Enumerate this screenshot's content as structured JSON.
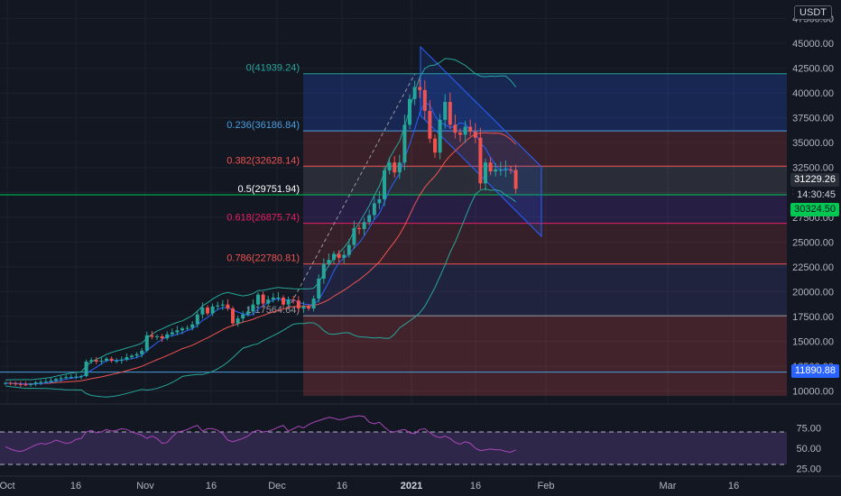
{
  "currency": "USDT",
  "price_tags": {
    "upper": "31229.26",
    "countdown": "14:30:45",
    "current": "30324.50",
    "lower": "11890.88"
  },
  "colors": {
    "background": "#131722",
    "bullish": "#26a69a",
    "bearish": "#ef5350",
    "fib_top": "#4a7fc1",
    "rsi_line": "#ab47bc",
    "bb_line": "#26a69a",
    "ma_line": "#ef5350",
    "current_price": "#00c853"
  },
  "chart_data": [
    {
      "type": "candlestick",
      "x_ticks": [
        "Oct",
        "16",
        "Nov",
        "16",
        "Dec",
        "16",
        "2021",
        "16",
        "Feb",
        "Mar",
        "16"
      ],
      "y_ticks": [
        10000,
        12500,
        15000,
        17500,
        20000,
        22500,
        25000,
        27500,
        30000,
        32500,
        35000,
        37500,
        40000,
        42500,
        45000,
        47500
      ],
      "y_tick_labels": [
        "10000.00",
        "12500.00",
        "15000.00",
        "17500.00",
        "20000.00",
        "22500.00",
        "25000.00",
        "27500.00",
        "30000.00",
        "32500.00",
        "35000.00",
        "37500.00",
        "40000.00",
        "42500.00",
        "45000.00",
        "47500.00"
      ],
      "ylim": [
        9500,
        48000
      ],
      "fibonacci": [
        {
          "label": "0(41939.24)",
          "value": 41939.24,
          "color": "#26a69a"
        },
        {
          "label": "0.236(36186.84)",
          "value": 36186.84,
          "color": "#4a9fe0"
        },
        {
          "label": "0.382(32628.14)",
          "value": 32628.14,
          "color": "#ef5350"
        },
        {
          "label": "0.5(29751.94)",
          "value": 29751.94,
          "color": "#ffffff"
        },
        {
          "label": "0.618(26875.74)",
          "value": 26875.74,
          "color": "#e91e63"
        },
        {
          "label": "0.786(22780.81)",
          "value": 22780.81,
          "color": "#ef5350"
        },
        {
          "label": "1(17564.64)",
          "value": 17564.64,
          "color": "#9598a1"
        }
      ],
      "horizontal_lines": [
        {
          "value": 29751.94,
          "color": "#00c853"
        },
        {
          "value": 11890.88,
          "color": "#4a9fe0"
        }
      ],
      "candles_close": [
        10800,
        10750,
        10700,
        10650,
        10600,
        10700,
        10850,
        10900,
        10950,
        11050,
        11200,
        11300,
        11400,
        11400,
        11450,
        11500,
        12950,
        13100,
        12950,
        13050,
        13250,
        13050,
        13050,
        13150,
        13400,
        13550,
        13700,
        14050,
        15600,
        15450,
        15500,
        15300,
        15700,
        15900,
        16100,
        16300,
        16350,
        16700,
        17700,
        18400,
        17800,
        18500,
        18600,
        18700,
        18300,
        16800,
        17300,
        17700,
        18000,
        18700,
        19700,
        18800,
        19200,
        19400,
        19400,
        18700,
        19200,
        19100,
        18300,
        18500,
        18300,
        19300,
        21300,
        22800,
        23200,
        23800,
        23400,
        23700,
        24700,
        26400,
        26300,
        27000,
        27700,
        28900,
        29300,
        32200,
        33000,
        32000,
        33000,
        36800,
        39400,
        40600,
        40300,
        38200,
        35400,
        34000,
        37300,
        39100,
        36800,
        36000,
        35800,
        36600,
        36100,
        35500,
        30900,
        33000,
        32100,
        32300,
        32300,
        32300,
        32250,
        30350
      ]
    },
    {
      "type": "line",
      "name": "RSI",
      "y_ticks": [
        25,
        50,
        75
      ],
      "y_tick_labels": [
        "25.00",
        "50.00",
        "75.00"
      ],
      "bands": [
        70,
        30
      ],
      "values": [
        52,
        49,
        47,
        46,
        48,
        51,
        54,
        56,
        55,
        57,
        60,
        58,
        56,
        57,
        61,
        62,
        70,
        72,
        69,
        70,
        73,
        71,
        72,
        74,
        73,
        70,
        68,
        66,
        62,
        65,
        62,
        56,
        57,
        64,
        70,
        71,
        73,
        76,
        78,
        71,
        74,
        74,
        72,
        68,
        60,
        58,
        60,
        62,
        65,
        70,
        72,
        70,
        71,
        73,
        76,
        78,
        71,
        74,
        77,
        75,
        79,
        82,
        84,
        86,
        88,
        87,
        85,
        86,
        88,
        89,
        90,
        89,
        82,
        80,
        82,
        76,
        71,
        70,
        72,
        73,
        69,
        68,
        73,
        74,
        69,
        65,
        63,
        65,
        62,
        57,
        55,
        58,
        56,
        50,
        47,
        48,
        49,
        48,
        48,
        46,
        45,
        48
      ]
    }
  ]
}
